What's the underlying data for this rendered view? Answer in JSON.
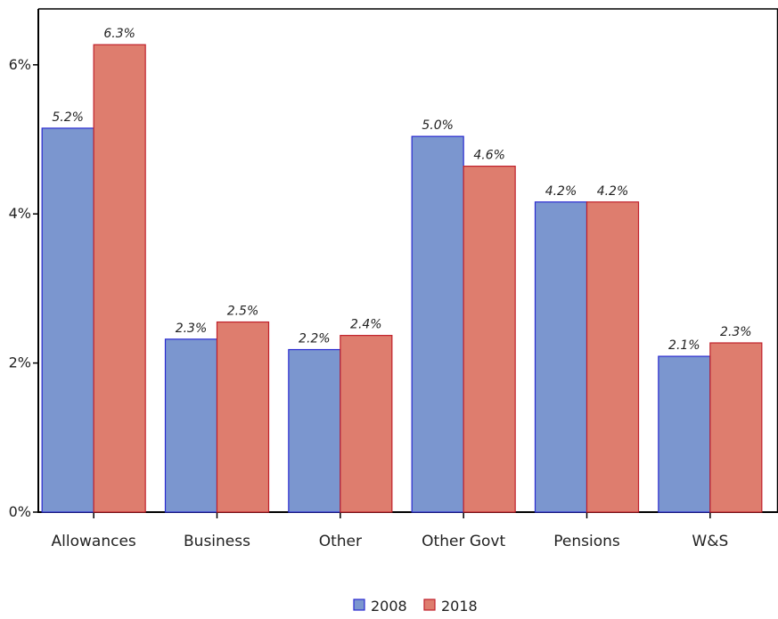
{
  "chart_data": {
    "type": "bar",
    "title": "",
    "xlabel": "",
    "ylabel": "",
    "categories": [
      "Allowances",
      "Business",
      "Other",
      "Other Govt",
      "Pensions",
      "W&S"
    ],
    "series": [
      {
        "name": "2008",
        "values": [
          5.15,
          2.32,
          2.18,
          5.04,
          4.16,
          2.09
        ],
        "labels": [
          "5.2%",
          "2.3%",
          "2.2%",
          "5.0%",
          "4.2%",
          "2.1%"
        ],
        "color": "#7b96cf",
        "stroke": "#2a2ad0"
      },
      {
        "name": "2018",
        "values": [
          6.27,
          2.55,
          2.37,
          4.64,
          4.16,
          2.27
        ],
        "labels": [
          "6.3%",
          "2.5%",
          "2.4%",
          "4.6%",
          "4.2%",
          "2.3%"
        ],
        "color": "#de7d6e",
        "stroke": "#c0202a"
      }
    ],
    "ylim": [
      0,
      6.75
    ],
    "yticks": [
      0,
      2,
      4,
      6
    ],
    "ytick_labels": [
      "0%",
      "2%",
      "4%",
      "6%"
    ],
    "grid": false,
    "legend_position": "bottom-center"
  }
}
